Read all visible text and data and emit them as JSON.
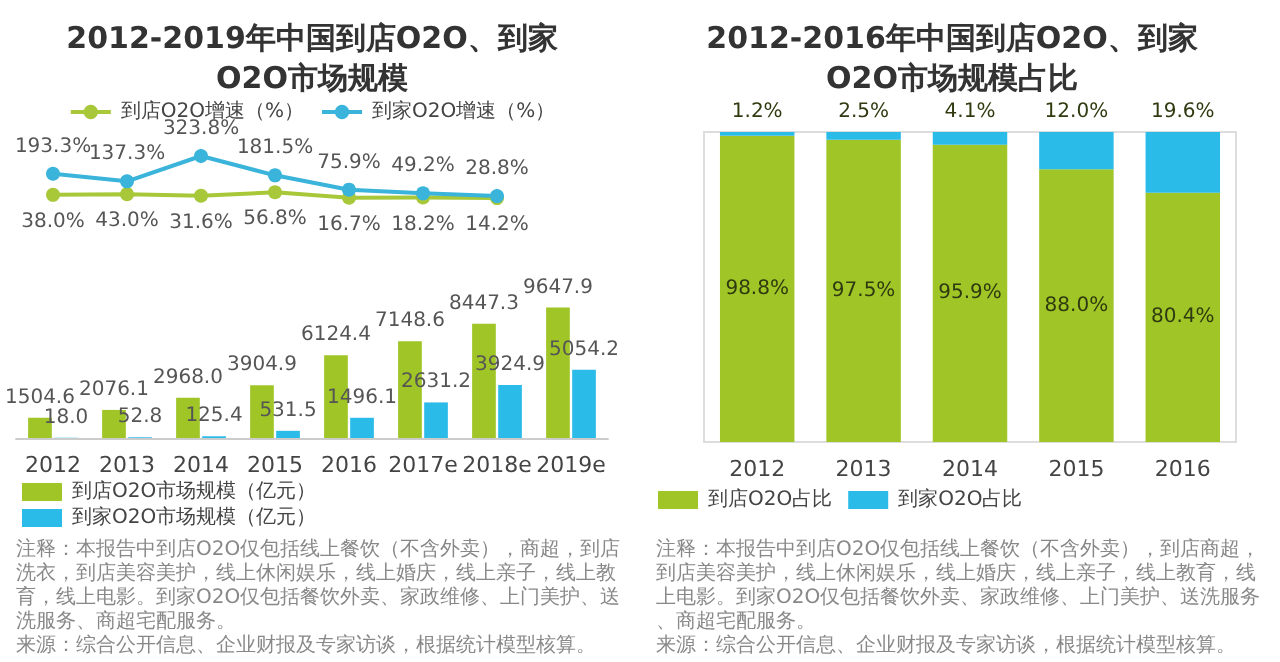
{
  "chart_data": [
    {
      "type": "line",
      "title": "2012-2019年中国到店O2O、到家O2O市场规模",
      "categories": [
        null,
        null,
        null,
        null,
        null,
        null,
        null,
        null
      ],
      "series": [
        {
          "name": "到店O2O增速（%）",
          "color": "#a8c83a",
          "values": [
            38.0,
            43.0,
            31.6,
            56.8,
            16.7,
            18.2,
            14.2,
            null
          ],
          "value_labels": [
            "38.0%",
            "43.0%",
            "31.6%",
            "56.8%",
            "16.7%",
            "18.2%",
            "14.2%",
            null
          ]
        },
        {
          "name": "到家O2O增速（%）",
          "color": "#3ab4da",
          "values": [
            193.3,
            137.3,
            323.8,
            181.5,
            75.9,
            49.2,
            28.8,
            null
          ],
          "value_labels": [
            "193.3%",
            "137.3%",
            "323.8%",
            "181.5%",
            "75.9%",
            "49.2%",
            "28.8%",
            null
          ]
        }
      ],
      "marker": "circle",
      "legend": "top",
      "tick_labels": false,
      "grid": false
    },
    {
      "type": "bar",
      "categories": [
        "2012",
        "2013",
        "2014",
        "2015",
        "2016",
        "2017e",
        "2018e",
        "2019e"
      ],
      "series": [
        {
          "name": "到店O2O市场规模（亿元）",
          "color": "#9fc526",
          "values": [
            1504.6,
            2076.1,
            2968.0,
            3904.9,
            6124.4,
            7148.6,
            8447.3,
            9647.9
          ],
          "value_labels": [
            "1504.6",
            "2076.1",
            "2968.0",
            "3904.9",
            "6124.4",
            "7148.6",
            "8447.3",
            "9647.9"
          ]
        },
        {
          "name": "到家O2O市场规模（亿元）",
          "color": "#2bbbe8",
          "values": [
            18.0,
            52.8,
            125.4,
            531.5,
            1496.1,
            2631.2,
            3924.9,
            5054.2
          ],
          "value_labels": [
            "18.0",
            "52.8",
            "125.4",
            "531.5",
            "1496.1",
            "2631.2",
            "3924.9",
            "5054.2"
          ]
        }
      ],
      "legend": "bottom",
      "tick_labels": "x",
      "grid": false,
      "annotations": [
        "注释：本报告中到店O2O仅包括线上餐饮（不含外卖），商超，到店洗衣，到店美容美护，线上休闲娱乐，线上婚庆，线上亲子，线上教育，线上电影。到家O2O仅包括餐饮外卖、家政维修、上门美护、送洗服务、商超宅配服务。",
        "来源：综合公开信息、企业财报及专家访谈，根据统计模型核算。"
      ]
    },
    {
      "type": "bar",
      "title": "2012-2016年中国到店O2O、到家O2O市场规模占比",
      "categories": [
        "2012",
        "2013",
        "2014",
        "2015",
        "2016"
      ],
      "stacked": true,
      "ylim": [
        0,
        100
      ],
      "tick_labels": "x",
      "grid": false,
      "legend": "bottom",
      "series": [
        {
          "name": "到店O2O占比",
          "color": "#9fc526",
          "values": [
            98.8,
            97.5,
            95.9,
            88.0,
            80.4
          ],
          "value_labels": [
            "98.8%",
            "97.5%",
            "95.9%",
            "88.0%",
            "80.4%"
          ]
        },
        {
          "name": "到家O2O占比",
          "color": "#2bbbe8",
          "values": [
            1.2,
            2.5,
            4.1,
            12.0,
            19.6
          ],
          "value_labels": [
            "1.2%",
            "2.5%",
            "4.1%",
            "12.0%",
            "19.6%"
          ]
        }
      ],
      "annotations": [
        "注释：本报告中到店O2O仅包括线上餐饮（不含外卖），到店商超，到店美容美护，线上休闲娱乐，线上婚庆，线上亲子，线上教育，线上电影。到家O2O仅包括餐饮外卖、家政维修、上门美护、送洗服务、商超宅配服务。",
        "来源：综合公开信息、企业财报及专家访谈，根据统计模型核算。"
      ]
    }
  ]
}
